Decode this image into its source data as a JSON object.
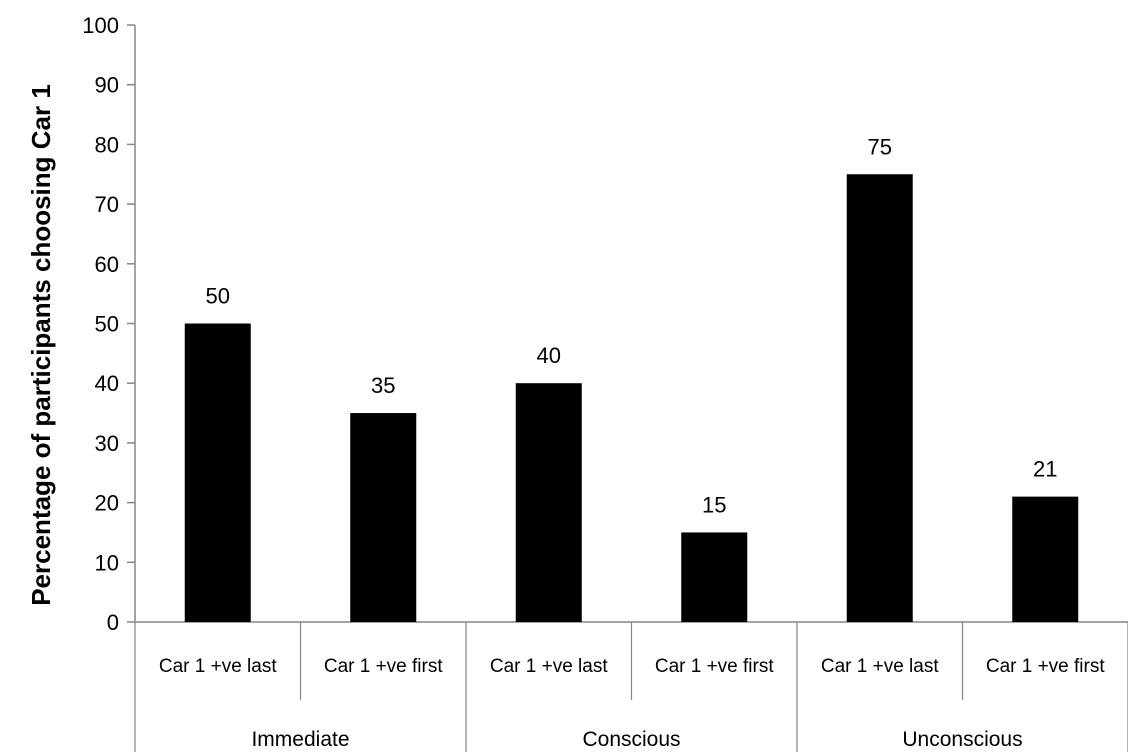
{
  "chart_data": {
    "type": "bar",
    "title": "",
    "xlabel": "",
    "ylabel": "Percentage of participants choosing Car 1",
    "ylim": [
      0,
      100
    ],
    "y_ticks": [
      0,
      10,
      20,
      30,
      40,
      50,
      60,
      70,
      80,
      90,
      100
    ],
    "grid": false,
    "legend": "none",
    "bar_color": "#000000",
    "groups": [
      "Immediate",
      "Conscious",
      "Unconscious"
    ],
    "categories": [
      "Car 1 +ve last",
      "Car 1 +ve first",
      "Car 1 +ve last",
      "Car 1 +ve first",
      "Car 1 +ve last",
      "Car 1 +ve first"
    ],
    "category_group": [
      0,
      0,
      1,
      1,
      2,
      2
    ],
    "values": [
      50,
      35,
      40,
      15,
      75,
      21
    ],
    "data_labels": [
      "50",
      "35",
      "40",
      "15",
      "75",
      "21"
    ]
  }
}
